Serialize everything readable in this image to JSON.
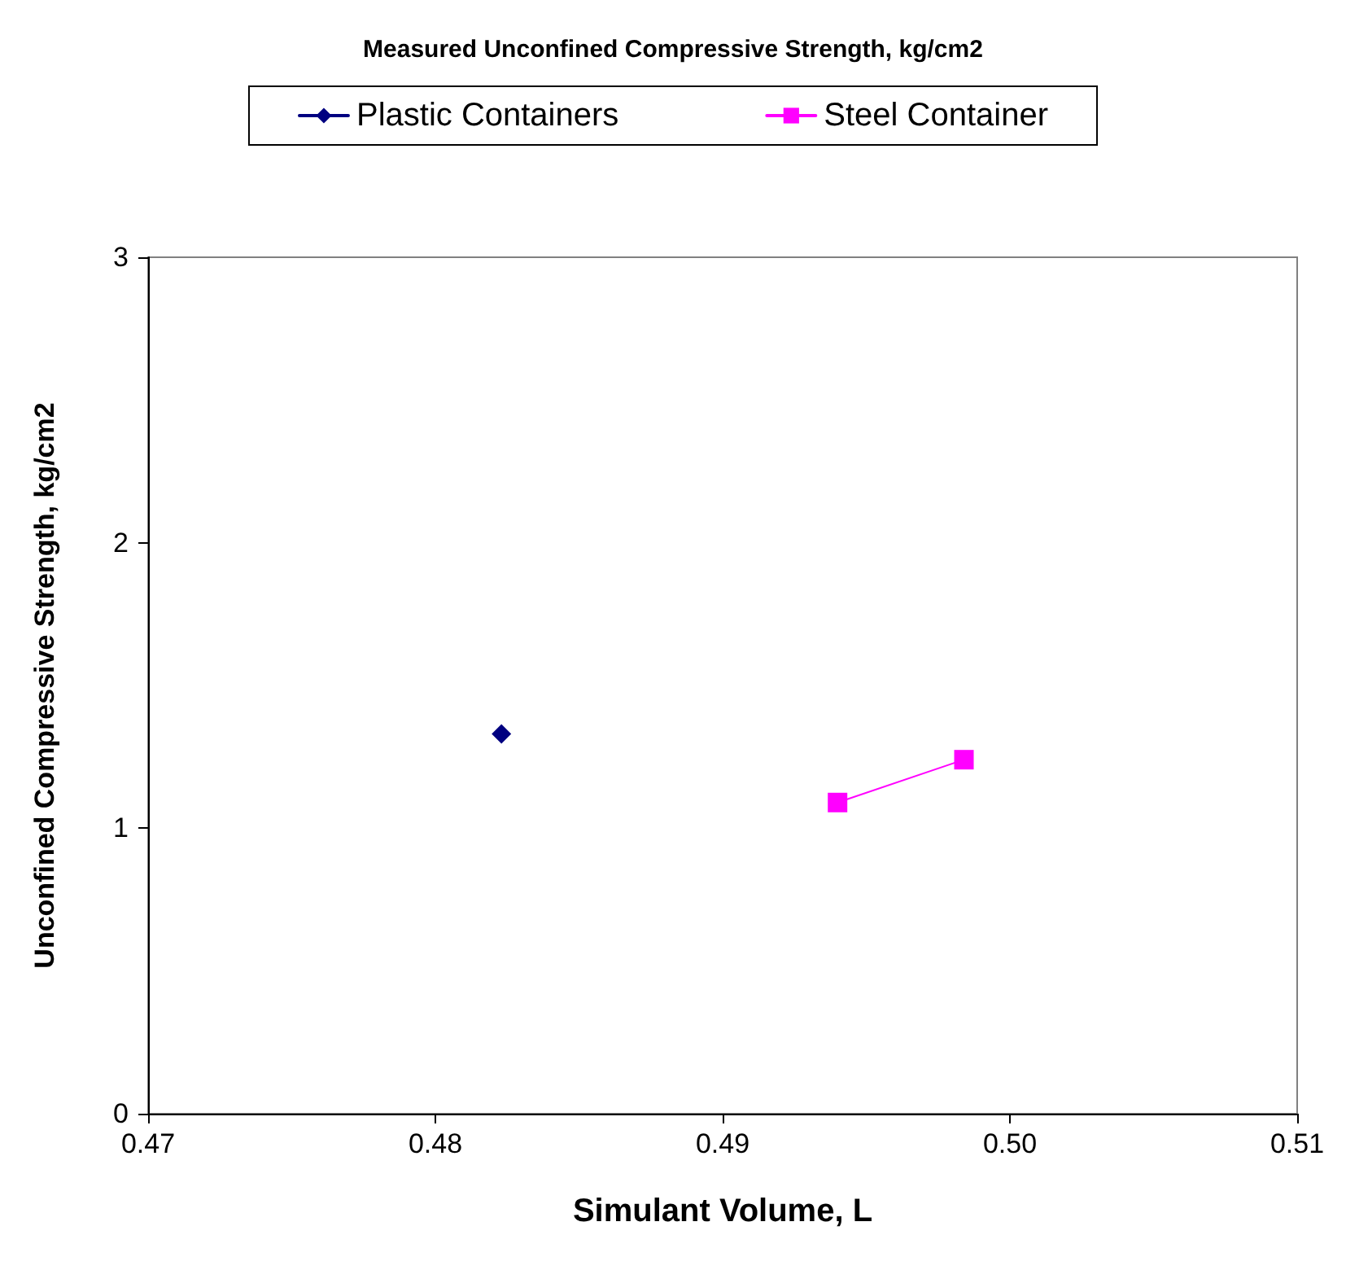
{
  "chart_data": {
    "type": "line",
    "title": "Measured Unconfined Compressive Strength, kg/cm2",
    "xlabel": "Simulant Volume, L",
    "ylabel": "Unconfined Compressive Strength, kg/cm2",
    "series": [
      {
        "name": "Plastic Containers",
        "color": "#000080",
        "marker": "diamond",
        "x": [
          0.4823
        ],
        "values": [
          1.33
        ]
      },
      {
        "name": "Steel Container",
        "color": "#ff00ff",
        "marker": "square",
        "x": [
          0.494,
          0.4984
        ],
        "values": [
          1.09,
          1.24
        ]
      }
    ],
    "xlim": [
      0.47,
      0.51
    ],
    "xticks": [
      0.47,
      0.48,
      0.49,
      {
        "value": 0.5,
        "label": "0.50"
      },
      0.51
    ],
    "ylim": [
      0,
      3
    ],
    "yticks": [
      0,
      1,
      2,
      3
    ],
    "grid": false,
    "legend": "top",
    "line_style": "solid"
  }
}
